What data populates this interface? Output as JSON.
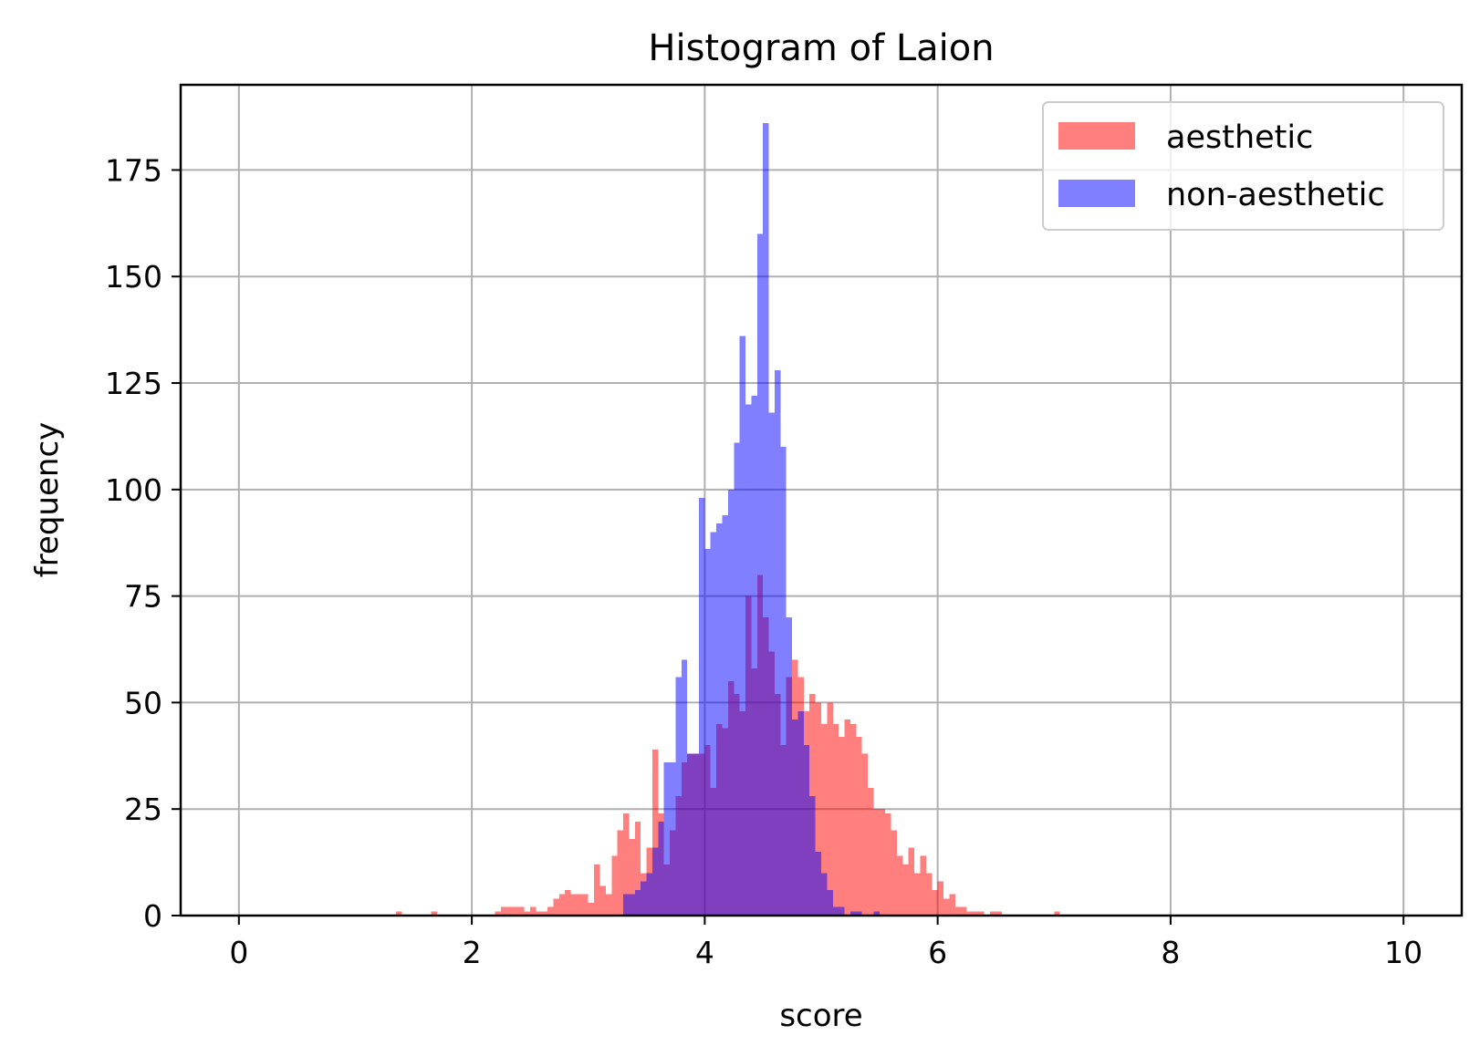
{
  "chart_data": {
    "type": "bar",
    "title": "Histogram of Laion",
    "xlabel": "score",
    "ylabel": "frequency",
    "xlim": [
      -0.5,
      10.5
    ],
    "ylim": [
      0,
      195
    ],
    "xticks": [
      "0",
      "2",
      "4",
      "6",
      "8",
      "10"
    ],
    "yticks": [
      "0",
      "25",
      "50",
      "75",
      "100",
      "125",
      "150",
      "175"
    ],
    "grid": true,
    "legend_position": "top-right",
    "bin_width": 0.05,
    "series": [
      {
        "name": "aesthetic",
        "color": "#ff0000",
        "alpha": 0.5,
        "bins": [
          [
            1.35,
            1
          ],
          [
            1.65,
            1
          ],
          [
            2.2,
            1
          ],
          [
            2.25,
            2
          ],
          [
            2.3,
            2
          ],
          [
            2.35,
            2
          ],
          [
            2.4,
            2
          ],
          [
            2.45,
            1
          ],
          [
            2.5,
            2
          ],
          [
            2.55,
            1
          ],
          [
            2.6,
            1
          ],
          [
            2.65,
            2
          ],
          [
            2.7,
            4
          ],
          [
            2.75,
            5
          ],
          [
            2.8,
            6
          ],
          [
            2.85,
            5
          ],
          [
            2.9,
            5
          ],
          [
            2.95,
            5
          ],
          [
            3.0,
            3
          ],
          [
            3.05,
            12
          ],
          [
            3.1,
            7
          ],
          [
            3.15,
            5
          ],
          [
            3.2,
            14
          ],
          [
            3.25,
            20
          ],
          [
            3.3,
            24
          ],
          [
            3.35,
            18
          ],
          [
            3.4,
            22
          ],
          [
            3.45,
            10
          ],
          [
            3.5,
            16
          ],
          [
            3.55,
            39
          ],
          [
            3.6,
            24
          ],
          [
            3.65,
            12
          ],
          [
            3.7,
            20
          ],
          [
            3.75,
            28
          ],
          [
            3.8,
            36
          ],
          [
            3.85,
            38
          ],
          [
            3.9,
            38
          ],
          [
            3.95,
            38
          ],
          [
            4.0,
            40
          ],
          [
            4.05,
            30
          ],
          [
            4.1,
            45
          ],
          [
            4.15,
            44
          ],
          [
            4.2,
            55
          ],
          [
            4.25,
            52
          ],
          [
            4.3,
            48
          ],
          [
            4.35,
            75
          ],
          [
            4.4,
            58
          ],
          [
            4.45,
            80
          ],
          [
            4.5,
            70
          ],
          [
            4.55,
            62
          ],
          [
            4.6,
            52
          ],
          [
            4.65,
            40
          ],
          [
            4.7,
            56
          ],
          [
            4.75,
            60
          ],
          [
            4.8,
            56
          ],
          [
            4.85,
            48
          ],
          [
            4.9,
            52
          ],
          [
            4.95,
            50
          ],
          [
            5.0,
            45
          ],
          [
            5.05,
            50
          ],
          [
            5.1,
            45
          ],
          [
            5.15,
            42
          ],
          [
            5.2,
            46
          ],
          [
            5.25,
            45
          ],
          [
            5.3,
            42
          ],
          [
            5.35,
            38
          ],
          [
            5.4,
            30
          ],
          [
            5.45,
            25
          ],
          [
            5.5,
            25
          ],
          [
            5.55,
            24
          ],
          [
            5.6,
            20
          ],
          [
            5.65,
            14
          ],
          [
            5.7,
            12
          ],
          [
            5.75,
            16
          ],
          [
            5.8,
            10
          ],
          [
            5.85,
            14
          ],
          [
            5.9,
            10
          ],
          [
            5.95,
            6
          ],
          [
            6.0,
            8
          ],
          [
            6.05,
            4
          ],
          [
            6.1,
            5
          ],
          [
            6.15,
            2
          ],
          [
            6.2,
            2
          ],
          [
            6.25,
            1
          ],
          [
            6.3,
            1
          ],
          [
            6.35,
            1
          ],
          [
            6.45,
            1
          ],
          [
            6.5,
            1
          ],
          [
            7.0,
            1
          ]
        ]
      },
      {
        "name": "non-aesthetic",
        "color": "#0000ff",
        "alpha": 0.5,
        "bins": [
          [
            3.3,
            5
          ],
          [
            3.35,
            5
          ],
          [
            3.4,
            6
          ],
          [
            3.45,
            8
          ],
          [
            3.5,
            10
          ],
          [
            3.55,
            16
          ],
          [
            3.6,
            22
          ],
          [
            3.65,
            36
          ],
          [
            3.7,
            36
          ],
          [
            3.75,
            56
          ],
          [
            3.8,
            60
          ],
          [
            3.85,
            38
          ],
          [
            3.9,
            38
          ],
          [
            3.95,
            98
          ],
          [
            4.0,
            86
          ],
          [
            4.05,
            90
          ],
          [
            4.1,
            92
          ],
          [
            4.15,
            94
          ],
          [
            4.2,
            100
          ],
          [
            4.25,
            111
          ],
          [
            4.3,
            136
          ],
          [
            4.35,
            120
          ],
          [
            4.4,
            122
          ],
          [
            4.45,
            160
          ],
          [
            4.5,
            186
          ],
          [
            4.55,
            118
          ],
          [
            4.6,
            128
          ],
          [
            4.65,
            110
          ],
          [
            4.7,
            70
          ],
          [
            4.75,
            46
          ],
          [
            4.8,
            48
          ],
          [
            4.85,
            40
          ],
          [
            4.9,
            28
          ],
          [
            4.95,
            15
          ],
          [
            5.0,
            10
          ],
          [
            5.05,
            6
          ],
          [
            5.1,
            2
          ],
          [
            5.15,
            2
          ],
          [
            5.25,
            1
          ],
          [
            5.3,
            1
          ],
          [
            5.45,
            1
          ]
        ]
      }
    ]
  }
}
